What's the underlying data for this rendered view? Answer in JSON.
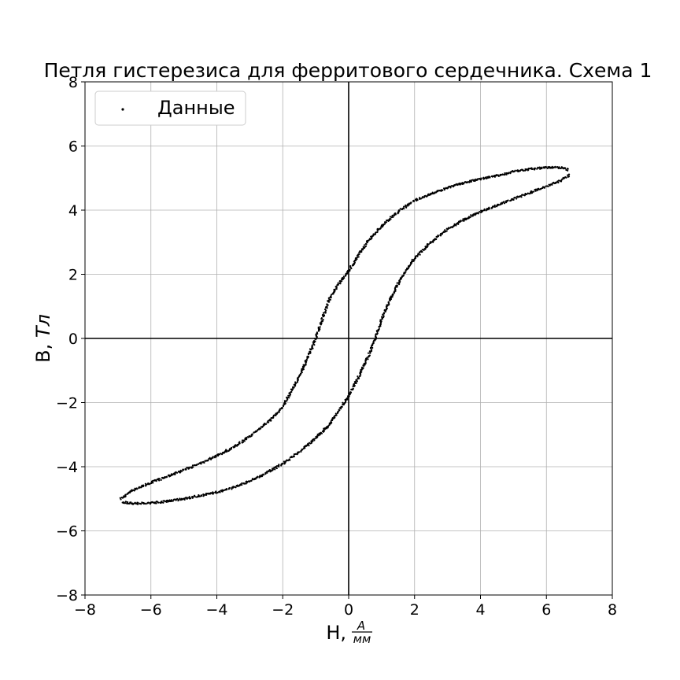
{
  "chart_data": {
    "type": "scatter",
    "title": "Петля гистерезиса для ферритового сердечника. Схема 1",
    "xlabel": "H,",
    "xlabel_unit_numerator": "A",
    "xlabel_unit_denominator": "мм",
    "ylabel_text": "B, ",
    "ylabel_unit": "Тл",
    "xlim": [
      -8,
      8
    ],
    "ylim": [
      -8,
      8
    ],
    "xticks": [
      -8,
      -6,
      -4,
      -2,
      0,
      2,
      4,
      6,
      8
    ],
    "yticks": [
      -8,
      -6,
      -4,
      -2,
      0,
      2,
      4,
      6,
      8
    ],
    "xtick_labels": [
      "−8",
      "−6",
      "−4",
      "−2",
      "0",
      "2",
      "4",
      "6",
      "8"
    ],
    "ytick_labels": [
      "−8",
      "−6",
      "−4",
      "−2",
      "0",
      "2",
      "4",
      "6",
      "8"
    ],
    "grid": true,
    "axis_lines_through_origin": true,
    "legend": {
      "placement": "top-left",
      "entries": [
        "Данные"
      ]
    },
    "marker_color": "#000000",
    "series": [
      {
        "name": "Данные",
        "upper_branch": [
          [
            -6.9,
            -5.0
          ],
          [
            -6.6,
            -4.75
          ],
          [
            -6.0,
            -4.5
          ],
          [
            -5.5,
            -4.3
          ],
          [
            -5.0,
            -4.1
          ],
          [
            -4.5,
            -3.9
          ],
          [
            -4.0,
            -3.65
          ],
          [
            -3.5,
            -3.4
          ],
          [
            -3.0,
            -3.05
          ],
          [
            -2.5,
            -2.65
          ],
          [
            -2.0,
            -2.15
          ],
          [
            -1.8,
            -1.75
          ],
          [
            -1.5,
            -1.2
          ],
          [
            -1.2,
            -0.5
          ],
          [
            -1.0,
            0.0
          ],
          [
            -0.8,
            0.6
          ],
          [
            -0.6,
            1.2
          ],
          [
            -0.3,
            1.7
          ],
          [
            0.0,
            2.1
          ],
          [
            0.3,
            2.6
          ],
          [
            0.6,
            3.05
          ],
          [
            1.0,
            3.5
          ],
          [
            1.5,
            3.95
          ],
          [
            2.0,
            4.3
          ],
          [
            2.5,
            4.5
          ],
          [
            3.0,
            4.7
          ],
          [
            3.5,
            4.85
          ],
          [
            4.0,
            4.97
          ],
          [
            4.5,
            5.07
          ],
          [
            5.0,
            5.2
          ],
          [
            5.5,
            5.28
          ],
          [
            6.0,
            5.33
          ],
          [
            6.4,
            5.33
          ],
          [
            6.7,
            5.25
          ]
        ],
        "lower_branch": [
          [
            6.7,
            5.1
          ],
          [
            6.4,
            4.9
          ],
          [
            6.0,
            4.75
          ],
          [
            5.5,
            4.55
          ],
          [
            5.0,
            4.35
          ],
          [
            4.5,
            4.15
          ],
          [
            4.0,
            3.95
          ],
          [
            3.5,
            3.7
          ],
          [
            3.0,
            3.4
          ],
          [
            2.5,
            3.0
          ],
          [
            2.0,
            2.5
          ],
          [
            1.8,
            2.2
          ],
          [
            1.5,
            1.7
          ],
          [
            1.2,
            1.1
          ],
          [
            1.0,
            0.6
          ],
          [
            0.8,
            0.0
          ],
          [
            0.6,
            -0.55
          ],
          [
            0.3,
            -1.2
          ],
          [
            0.0,
            -1.8
          ],
          [
            -0.3,
            -2.25
          ],
          [
            -0.6,
            -2.7
          ],
          [
            -1.0,
            -3.1
          ],
          [
            -1.5,
            -3.55
          ],
          [
            -2.0,
            -3.9
          ],
          [
            -2.5,
            -4.2
          ],
          [
            -3.0,
            -4.45
          ],
          [
            -3.5,
            -4.65
          ],
          [
            -4.0,
            -4.8
          ],
          [
            -4.5,
            -4.9
          ],
          [
            -5.0,
            -5.0
          ],
          [
            -5.5,
            -5.08
          ],
          [
            -6.0,
            -5.13
          ],
          [
            -6.5,
            -5.15
          ],
          [
            -6.9,
            -5.1
          ]
        ]
      }
    ]
  }
}
